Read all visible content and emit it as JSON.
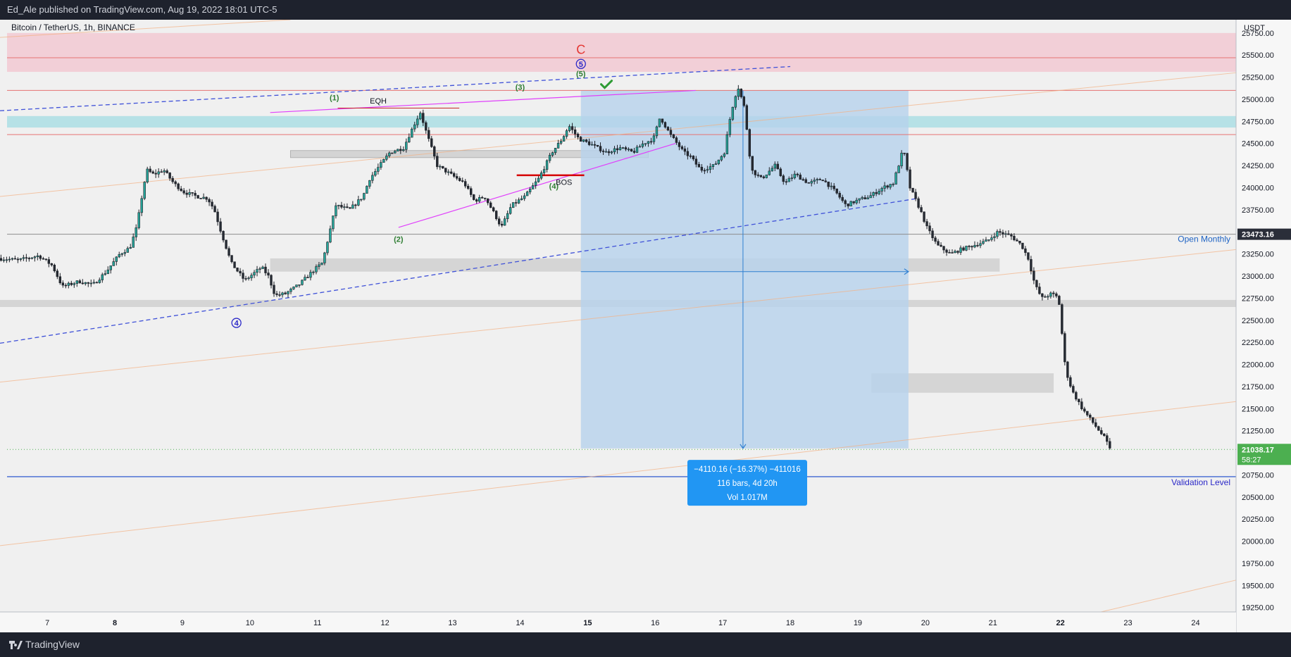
{
  "publisher_line": "Ed_Ale published on TradingView.com, Aug 19, 2022 18:01 UTC-5",
  "symbol_line": "Bitcoin / TetherUS, 1h, BINANCE",
  "footer_brand": "TradingView",
  "colors": {
    "up_candle": "#26a69a",
    "down_candle": "#262b33",
    "supply_zone": "#f2c7d1",
    "demand_zone": "#a8dde3",
    "measure_box": "#b7d2ec",
    "price_tag_green": "#4caf50",
    "price_tag_dark": "#2a2e39",
    "validation_line": "#1848cc",
    "wave_green": "#2e7d32",
    "wave_blue": "#2b28c8",
    "wave_red": "#e53935",
    "magenta": "#e040fb"
  },
  "chart_data": {
    "type": "candlestick",
    "title": "Bitcoin / TetherUS, 1h, BINANCE",
    "y_axis": {
      "unit_label": "USDT",
      "min": 19200,
      "max": 25900,
      "ticks": [
        25750,
        25500,
        25250,
        25000,
        24750,
        24500,
        24250,
        24000,
        23750,
        23500,
        23250,
        23000,
        22750,
        22500,
        22250,
        22000,
        21750,
        21500,
        21250,
        20750,
        20500,
        20250,
        20000,
        19750,
        19500,
        19250
      ],
      "tick_labels": [
        "25750.00",
        "25500.00",
        "25250.00",
        "25000.00",
        "24750.00",
        "24500.00",
        "24250.00",
        "24000.00",
        "23750.00",
        "23500.00",
        "23250.00",
        "23000.00",
        "22750.00",
        "22500.00",
        "22250.00",
        "22000.00",
        "21750.00",
        "21500.00",
        "21250.00",
        "20750.00",
        "20500.00",
        "20250.00",
        "20000.00",
        "19750.00",
        "19500.00",
        "19250.00"
      ]
    },
    "x_axis": {
      "start_day": 6.3,
      "end_day": 24.6,
      "tick_days": [
        7,
        8,
        9,
        10,
        11,
        12,
        13,
        14,
        15,
        16,
        17,
        18,
        19,
        20,
        21,
        22,
        23,
        24
      ],
      "tick_labels": [
        "7",
        "8",
        "9",
        "10",
        "11",
        "12",
        "13",
        "14",
        "15",
        "16",
        "17",
        "18",
        "19",
        "20",
        "21",
        "22",
        "23",
        "24"
      ],
      "bold_ticks": [
        "8",
        "15",
        "22"
      ]
    },
    "price_path": [
      [
        6.3,
        23200
      ],
      [
        6.6,
        23180
      ],
      [
        6.9,
        23230
      ],
      [
        7.1,
        23120
      ],
      [
        7.25,
        22880
      ],
      [
        7.5,
        22940
      ],
      [
        7.7,
        22900
      ],
      [
        7.9,
        23050
      ],
      [
        8.1,
        23250
      ],
      [
        8.25,
        23320
      ],
      [
        8.35,
        23550
      ],
      [
        8.45,
        24000
      ],
      [
        8.5,
        24200
      ],
      [
        8.6,
        24150
      ],
      [
        8.75,
        24200
      ],
      [
        8.9,
        24050
      ],
      [
        9.05,
        23950
      ],
      [
        9.25,
        23900
      ],
      [
        9.4,
        23880
      ],
      [
        9.5,
        23750
      ],
      [
        9.6,
        23500
      ],
      [
        9.75,
        23150
      ],
      [
        9.95,
        22950
      ],
      [
        10.2,
        23100
      ],
      [
        10.3,
        23000
      ],
      [
        10.4,
        22780
      ],
      [
        10.55,
        22800
      ],
      [
        10.75,
        22900
      ],
      [
        10.95,
        23050
      ],
      [
        11.1,
        23150
      ],
      [
        11.3,
        23800
      ],
      [
        11.5,
        23750
      ],
      [
        11.7,
        23900
      ],
      [
        11.8,
        24100
      ],
      [
        11.95,
        24250
      ],
      [
        12.1,
        24400
      ],
      [
        12.3,
        24450
      ],
      [
        12.45,
        24700
      ],
      [
        12.55,
        24850
      ],
      [
        12.65,
        24600
      ],
      [
        12.8,
        24250
      ],
      [
        13.0,
        24150
      ],
      [
        13.2,
        24050
      ],
      [
        13.35,
        23850
      ],
      [
        13.5,
        23900
      ],
      [
        13.65,
        23700
      ],
      [
        13.75,
        23550
      ],
      [
        13.9,
        23800
      ],
      [
        14.1,
        23900
      ],
      [
        14.3,
        24100
      ],
      [
        14.5,
        24400
      ],
      [
        14.65,
        24550
      ],
      [
        14.75,
        24700
      ],
      [
        14.9,
        24550
      ],
      [
        15.05,
        24500
      ],
      [
        15.3,
        24400
      ],
      [
        15.5,
        24450
      ],
      [
        15.7,
        24400
      ],
      [
        15.85,
        24500
      ],
      [
        16.0,
        24550
      ],
      [
        16.1,
        24800
      ],
      [
        16.25,
        24600
      ],
      [
        16.45,
        24400
      ],
      [
        16.55,
        24350
      ],
      [
        16.7,
        24200
      ],
      [
        16.9,
        24250
      ],
      [
        17.05,
        24400
      ],
      [
        17.15,
        24850
      ],
      [
        17.25,
        25150
      ],
      [
        17.35,
        24900
      ],
      [
        17.45,
        24200
      ],
      [
        17.6,
        24100
      ],
      [
        17.8,
        24250
      ],
      [
        17.95,
        24050
      ],
      [
        18.1,
        24150
      ],
      [
        18.3,
        24050
      ],
      [
        18.5,
        24100
      ],
      [
        18.7,
        23950
      ],
      [
        18.85,
        23800
      ],
      [
        19.0,
        23850
      ],
      [
        19.2,
        23900
      ],
      [
        19.4,
        24000
      ],
      [
        19.55,
        24050
      ],
      [
        19.65,
        24300
      ],
      [
        19.7,
        24450
      ],
      [
        19.8,
        24000
      ],
      [
        19.95,
        23750
      ],
      [
        20.05,
        23550
      ],
      [
        20.2,
        23350
      ],
      [
        20.4,
        23250
      ],
      [
        20.55,
        23300
      ],
      [
        20.75,
        23350
      ],
      [
        20.95,
        23400
      ],
      [
        21.1,
        23500
      ],
      [
        21.3,
        23450
      ],
      [
        21.45,
        23350
      ],
      [
        21.55,
        23200
      ],
      [
        21.65,
        22900
      ],
      [
        21.75,
        22750
      ],
      [
        21.9,
        22800
      ],
      [
        22.0,
        22750
      ],
      [
        22.1,
        21950
      ],
      [
        22.2,
        21700
      ],
      [
        22.35,
        21500
      ],
      [
        22.5,
        21350
      ],
      [
        22.6,
        21250
      ],
      [
        22.7,
        21150
      ],
      [
        22.75,
        21040
      ]
    ],
    "annotations": {
      "supply_zone": {
        "from": 25310,
        "to": 25750
      },
      "demand_zone": {
        "from": 24680,
        "to": 24810
      },
      "red_lines": [
        25470,
        25100,
        24600
      ],
      "gray_zones": [
        {
          "x1": 10.6,
          "x2": 15.9,
          "from": 24340,
          "to": 24420
        },
        {
          "x1": 10.3,
          "x2": 21.1,
          "from": 23050,
          "to": 23200
        },
        {
          "x1": 6.3,
          "x2": 24.6,
          "from": 22650,
          "to": 22730
        },
        {
          "x1": 19.2,
          "x2": 21.9,
          "from": 21680,
          "to": 21900
        }
      ],
      "open_monthly": {
        "value": 23473.16,
        "label": "Open Monthly",
        "tag": "23473.16"
      },
      "validation_level": {
        "value": 20730,
        "label": "Validation Level"
      },
      "current_price": {
        "value": 21038.17,
        "tag": "21038.17",
        "countdown": "58:27"
      },
      "measure_box": {
        "x1": 14.9,
        "x2": 19.75,
        "top": 25100,
        "bottom": 21050
      },
      "measure_info": {
        "line1": "−4110.16 (−16.37%) −411016",
        "line2": "116 bars, 4d 20h",
        "line3": "Vol 1.017M"
      },
      "eqh_label": "EQH",
      "bos_label": "BOS",
      "wave_labels": [
        {
          "text": "(1)",
          "day": 11.25,
          "price": 25020,
          "color": "green"
        },
        {
          "text": "(2)",
          "day": 12.2,
          "price": 23420,
          "color": "green"
        },
        {
          "text": "(3)",
          "day": 14.0,
          "price": 25140,
          "color": "green"
        },
        {
          "text": "(4)",
          "day": 14.5,
          "price": 24020,
          "color": "green"
        },
        {
          "text": "(5)",
          "day": 14.9,
          "price": 25290,
          "color": "green"
        },
        {
          "text": "5",
          "day": 14.9,
          "price": 25400,
          "color": "blue",
          "circle": true
        },
        {
          "text": "4",
          "day": 9.8,
          "price": 22470,
          "color": "blue",
          "circle": true
        },
        {
          "text": "C",
          "day": 14.9,
          "price": 25560,
          "color": "red"
        }
      ]
    }
  }
}
